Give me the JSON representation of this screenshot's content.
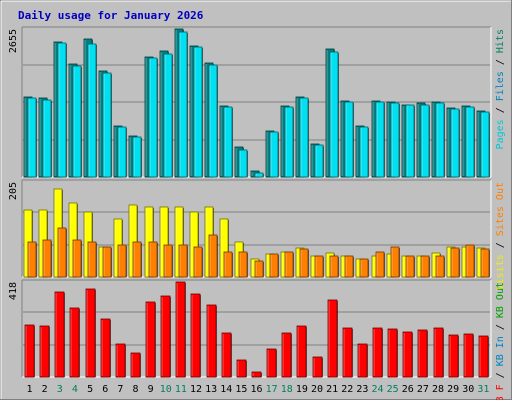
{
  "chart_data": {
    "type": "bar",
    "title": "Daily usage for January 2026",
    "categories": [
      "1",
      "2",
      "3",
      "4",
      "5",
      "6",
      "7",
      "8",
      "9",
      "10",
      "11",
      "12",
      "13",
      "14",
      "15",
      "16",
      "17",
      "18",
      "19",
      "20",
      "21",
      "22",
      "23",
      "24",
      "25",
      "26",
      "27",
      "28",
      "29",
      "30",
      "31"
    ],
    "weekend_days": [
      "3",
      "4",
      "10",
      "11",
      "17",
      "18",
      "24",
      "25",
      "31"
    ],
    "panels": [
      {
        "max_label": "2655",
        "ylim": [
          0,
          2655
        ],
        "axis_label_parts": [
          {
            "text": "Pages",
            "color": "#00c8d8"
          },
          {
            "text": " / ",
            "color": "#000000"
          },
          {
            "text": "Files",
            "color": "#0080c0"
          },
          {
            "text": " / ",
            "color": "#000000"
          },
          {
            "text": "Hits",
            "color": "#008060"
          }
        ],
        "series": [
          {
            "name": "Hits",
            "color": "#008080",
            "values": [
              1430,
              1410,
              2420,
              2020,
              2470,
              1900,
              920,
              730,
              2160,
              2260,
              2650,
              2350,
              2040,
              1280,
              530,
              110,
              830,
              1270,
              1430,
              600,
              2300,
              1360,
              920,
              1360,
              1350,
              1300,
              1320,
              1350,
              1240,
              1280,
              1190
            ]
          },
          {
            "name": "Pages",
            "color": "#00e0f0",
            "values": [
              1420,
              1390,
              2400,
              2000,
              2380,
              1870,
              900,
              720,
              2140,
              2200,
              2600,
              2330,
              2010,
              1260,
              480,
              80,
              800,
              1250,
              1410,
              580,
              2240,
              1340,
              900,
              1340,
              1330,
              1290,
              1300,
              1320,
              1220,
              1250,
              1170
            ]
          }
        ]
      },
      {
        "max_label": "205",
        "ylim": [
          0,
          205
        ],
        "axis_label_parts": [
          {
            "text": "Visits",
            "color": "#f0f000"
          },
          {
            "text": " / ",
            "color": "#000000"
          },
          {
            "text": "Sites",
            "color": "#ff8000"
          },
          {
            "text": " Out",
            "color": "#ff8000"
          }
        ],
        "series": [
          {
            "name": "Visits",
            "color": "#ffff00",
            "values": [
              145,
              145,
              190,
              160,
              140,
              65,
              125,
              155,
              150,
              150,
              150,
              140,
              150,
              125,
              75,
              38,
              50,
              55,
              62,
              45,
              52,
              45,
              38,
              45,
              50,
              45,
              45,
              52,
              65,
              65,
              62
            ]
          },
          {
            "name": "Sites",
            "color": "#ff8000",
            "values": [
              75,
              80,
              105,
              80,
              75,
              65,
              70,
              75,
              75,
              70,
              70,
              65,
              90,
              55,
              55,
              35,
              50,
              55,
              60,
              45,
              45,
              45,
              38,
              55,
              65,
              45,
              45,
              45,
              62,
              70,
              60
            ]
          }
        ]
      },
      {
        "max_label": "418",
        "ylim": [
          0,
          418
        ],
        "axis_label_parts": [
          {
            "text": "KB F",
            "color": "#ff0000"
          },
          {
            "text": " / ",
            "color": "#000000"
          },
          {
            "text": "KB In",
            "color": "#0080c0"
          },
          {
            "text": " / ",
            "color": "#000000"
          },
          {
            "text": "KB Out",
            "color": "#00a000"
          }
        ],
        "series": [
          {
            "name": "KB F",
            "color": "#ff0000",
            "values": [
              230,
              225,
              375,
              305,
              385,
              255,
              145,
              105,
              330,
              355,
              420,
              365,
              315,
              195,
              75,
              20,
              125,
              195,
              225,
              90,
              340,
              215,
              145,
              215,
              210,
              200,
              205,
              215,
              185,
              190,
              180
            ]
          }
        ]
      }
    ],
    "grid": true
  }
}
